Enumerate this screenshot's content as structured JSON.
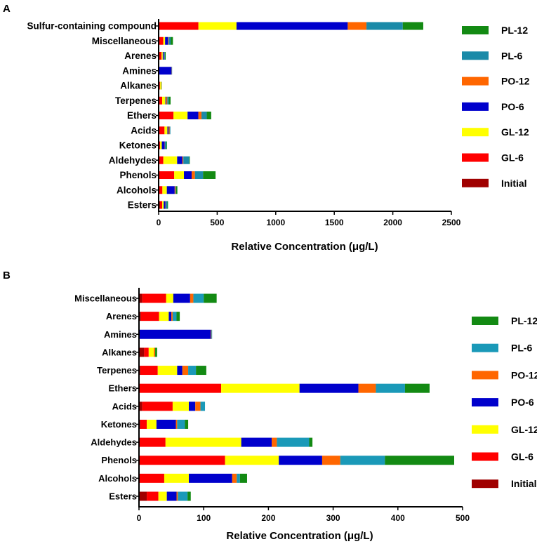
{
  "chart_data": [
    {
      "panel": "A",
      "type": "bar",
      "orientation": "horizontal",
      "stacked": true,
      "xlabel": "Relative Concentration (μg/L)",
      "xlim": [
        0,
        2500
      ],
      "xticks": [
        0,
        500,
        1000,
        1500,
        2000,
        2500
      ],
      "categories": [
        "Sulfur-containing compound",
        "Miscellaneous",
        "Arenes",
        "Amines",
        "Alkanes",
        "Terpenes",
        "Ethers",
        "Acids",
        "Ketones",
        "Aldehydes",
        "Phenols",
        "Alcohols",
        "Esters"
      ],
      "series": [
        {
          "name": "Initial",
          "color": "#a00000",
          "values": [
            5,
            5,
            3,
            0,
            8,
            5,
            0,
            5,
            2,
            0,
            0,
            0,
            12
          ]
        },
        {
          "name": "GL-6",
          "color": "#ff0000",
          "values": [
            335,
            35,
            22,
            0,
            5,
            25,
            127,
            45,
            10,
            40,
            133,
            32,
            18
          ]
        },
        {
          "name": "GL-12",
          "color": "#ffff00",
          "values": [
            325,
            15,
            10,
            0,
            8,
            28,
            120,
            25,
            15,
            118,
            83,
            38,
            13
          ]
        },
        {
          "name": "PO-6",
          "color": "#0000cc",
          "values": [
            950,
            25,
            8,
            110,
            0,
            7,
            92,
            10,
            25,
            45,
            66,
            67,
            15
          ]
        },
        {
          "name": "PO-12",
          "color": "#ff6600",
          "values": [
            160,
            5,
            3,
            2,
            2,
            9,
            27,
            8,
            2,
            8,
            28,
            7,
            2
          ]
        },
        {
          "name": "PL-6",
          "color": "#1a8aa8",
          "values": [
            310,
            17,
            8,
            1,
            0,
            12,
            45,
            7,
            12,
            50,
            69,
            5,
            15
          ]
        },
        {
          "name": "PL-12",
          "color": "#138a13",
          "values": [
            175,
            20,
            6,
            0,
            3,
            16,
            38,
            0,
            5,
            5,
            107,
            11,
            5
          ]
        }
      ]
    },
    {
      "panel": "B",
      "type": "bar",
      "orientation": "horizontal",
      "stacked": true,
      "xlabel": "Relative Concentration (μg/L)",
      "xlim": [
        0,
        500
      ],
      "xticks": [
        0,
        100,
        200,
        300,
        400,
        500
      ],
      "categories": [
        "Miscellaneous",
        "Arenes",
        "Amines",
        "Alkanes",
        "Terpenes",
        "Ethers",
        "Acids",
        "Ketones",
        "Aldehydes",
        "Phenols",
        "Alcohols",
        "Esters"
      ],
      "series": [
        {
          "name": "Initial",
          "color": "#a00000",
          "values": [
            5,
            3,
            0,
            8,
            2,
            0,
            5,
            2,
            0,
            0,
            0,
            12
          ]
        },
        {
          "name": "GL-6",
          "color": "#ff0000",
          "values": [
            37,
            28,
            0,
            7,
            27,
            127,
            47,
            10,
            41,
            133,
            39,
            18
          ]
        },
        {
          "name": "GL-12",
          "color": "#ffff00",
          "values": [
            11,
            15,
            0,
            8,
            30,
            121,
            25,
            15,
            117,
            83,
            38,
            13
          ]
        },
        {
          "name": "PO-6",
          "color": "#0000cc",
          "values": [
            26,
            4,
            111,
            0,
            8,
            91,
            10,
            30,
            47,
            67,
            67,
            15
          ]
        },
        {
          "name": "PO-12",
          "color": "#ff6600",
          "values": [
            5,
            2,
            1,
            2,
            9,
            27,
            8,
            2,
            8,
            28,
            7,
            2
          ]
        },
        {
          "name": "PL-6",
          "color": "#1a99b8",
          "values": [
            16,
            6,
            1,
            0,
            12,
            45,
            7,
            12,
            50,
            69,
            5,
            15
          ]
        },
        {
          "name": "PL-12",
          "color": "#138a13",
          "values": [
            20,
            5,
            0,
            3,
            16,
            38,
            0,
            5,
            5,
            107,
            11,
            5
          ]
        }
      ]
    }
  ],
  "legend_order": [
    "PL-12",
    "PL-6",
    "PO-12",
    "PO-6",
    "GL-12",
    "GL-6",
    "Initial"
  ]
}
